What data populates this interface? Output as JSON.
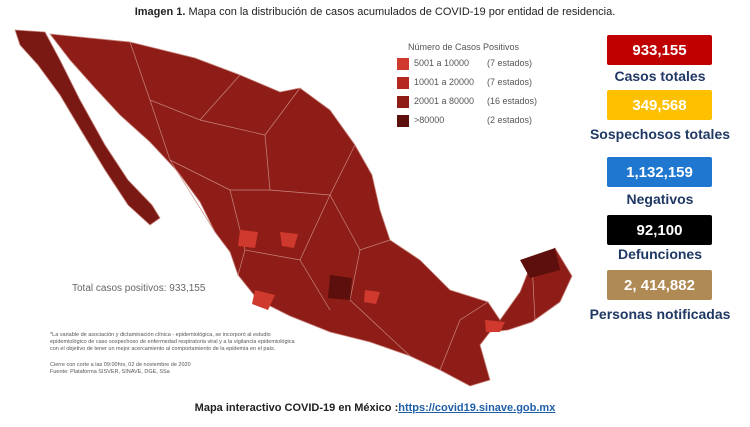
{
  "header": {
    "title_bold": "Imagen 1.",
    "title": "Mapa con la distribución de casos acumulados de COVID-19 por entidad de residencia."
  },
  "legend": {
    "title": "Número de Casos Positivos",
    "items": [
      {
        "range": "5001 a 10000",
        "count": "(7 estados)",
        "color": "#d03a2e"
      },
      {
        "range": "10001 a 20000",
        "count": "(7 estados)",
        "color": "#b5281f"
      },
      {
        "range": "20001 a 80000",
        "count": "(16 estados)",
        "color": "#8e1d17"
      },
      {
        "range": ">80000",
        "count": "(2 estados)",
        "color": "#5c0f0c"
      }
    ]
  },
  "total_text": "Total casos positivos: 933,155",
  "notes": [
    "*La variable de asociación y dictaminación clínica - epidemiológica, se incorporó al estudio",
    "epidemiológico de caso sospechoso de enfermedad respiratoria viral y a la vigilancia epidemiológica",
    "con el objetivo de tener un mejor acercamiento al comportamiento de la epidemia en el país.",
    "Cierre con corte a las 09:00hrs, 02 de noviembre de 2020",
    "Fuente: Plataforma SISVER, SINAVE, DGE, SSa"
  ],
  "stats": [
    {
      "value": "933,155",
      "label": "Casos totales",
      "color": "#c00000"
    },
    {
      "value": "349,568",
      "label": "Sospechosos totales",
      "color": "#ffc000"
    },
    {
      "value": "1,132,159",
      "label": "Negativos",
      "color": "#1f77d0"
    },
    {
      "value": "92,100",
      "label": "Defunciones",
      "color": "#000000"
    },
    {
      "value": "2, 414,882",
      "label": "Personas notificadas",
      "color": "#b08a55"
    }
  ],
  "footer": {
    "text": "Mapa interactivo COVID-19 en México :",
    "link": "https://covid19.sinave.gob.mx"
  }
}
